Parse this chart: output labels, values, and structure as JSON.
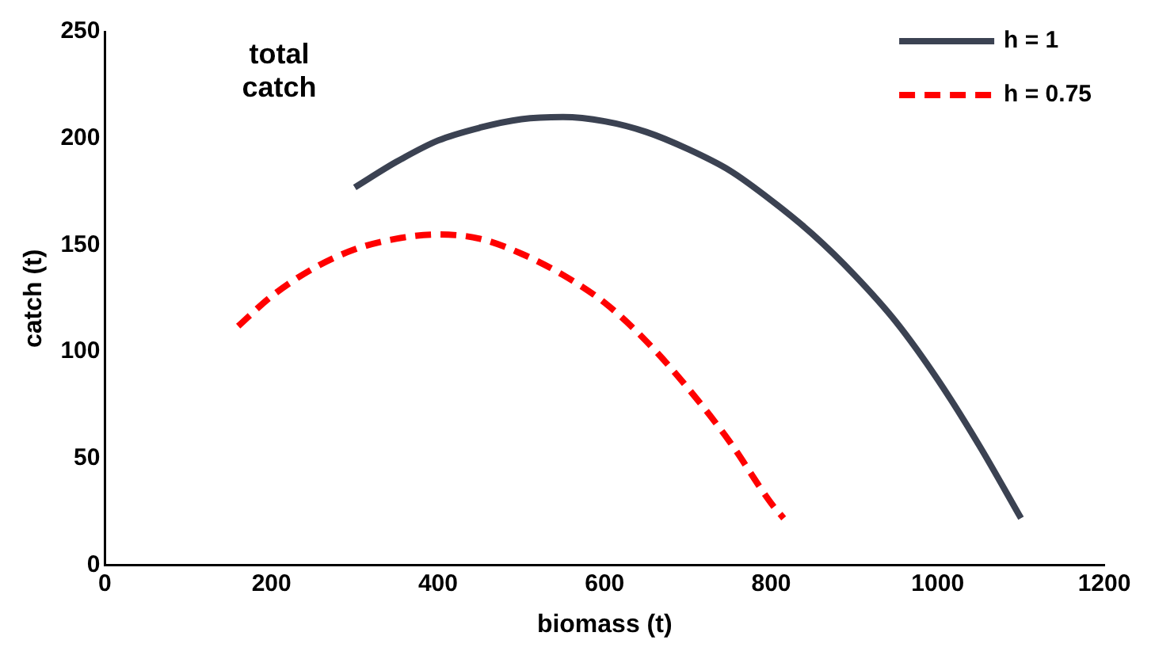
{
  "chart_data": {
    "type": "line",
    "xlabel": "biomass (t)",
    "ylabel": "catch (t)",
    "annotations": [
      "total\ncatch"
    ],
    "xlim": [
      0,
      1200
    ],
    "xticks": [
      0,
      200,
      400,
      600,
      800,
      1000,
      1200
    ],
    "ylim": [
      0,
      250
    ],
    "yticks": [
      0,
      50,
      100,
      150,
      200,
      250
    ],
    "grid": false,
    "legend": "top right",
    "marker": "none",
    "series": [
      {
        "name": "h = 1",
        "color": "#3b4252",
        "line_style": "solid",
        "x": [
          300,
          350,
          400,
          450,
          500,
          550,
          600,
          650,
          700,
          750,
          800,
          850,
          900,
          950,
          1000,
          1050,
          1100
        ],
        "values": [
          177,
          189,
          199,
          205,
          209,
          210,
          208,
          203,
          195,
          185,
          171,
          155,
          136,
          114,
          87,
          56,
          22
        ]
      },
      {
        "name": "h = 0.75",
        "color": "#ff0000",
        "line_style": "dashed",
        "x": [
          160,
          200,
          250,
          300,
          350,
          400,
          450,
          500,
          550,
          600,
          650,
          700,
          750,
          800,
          815
        ],
        "values": [
          112,
          126,
          139,
          148,
          153,
          155,
          153,
          146,
          136,
          123,
          105,
          83,
          58,
          29,
          22
        ]
      }
    ]
  }
}
